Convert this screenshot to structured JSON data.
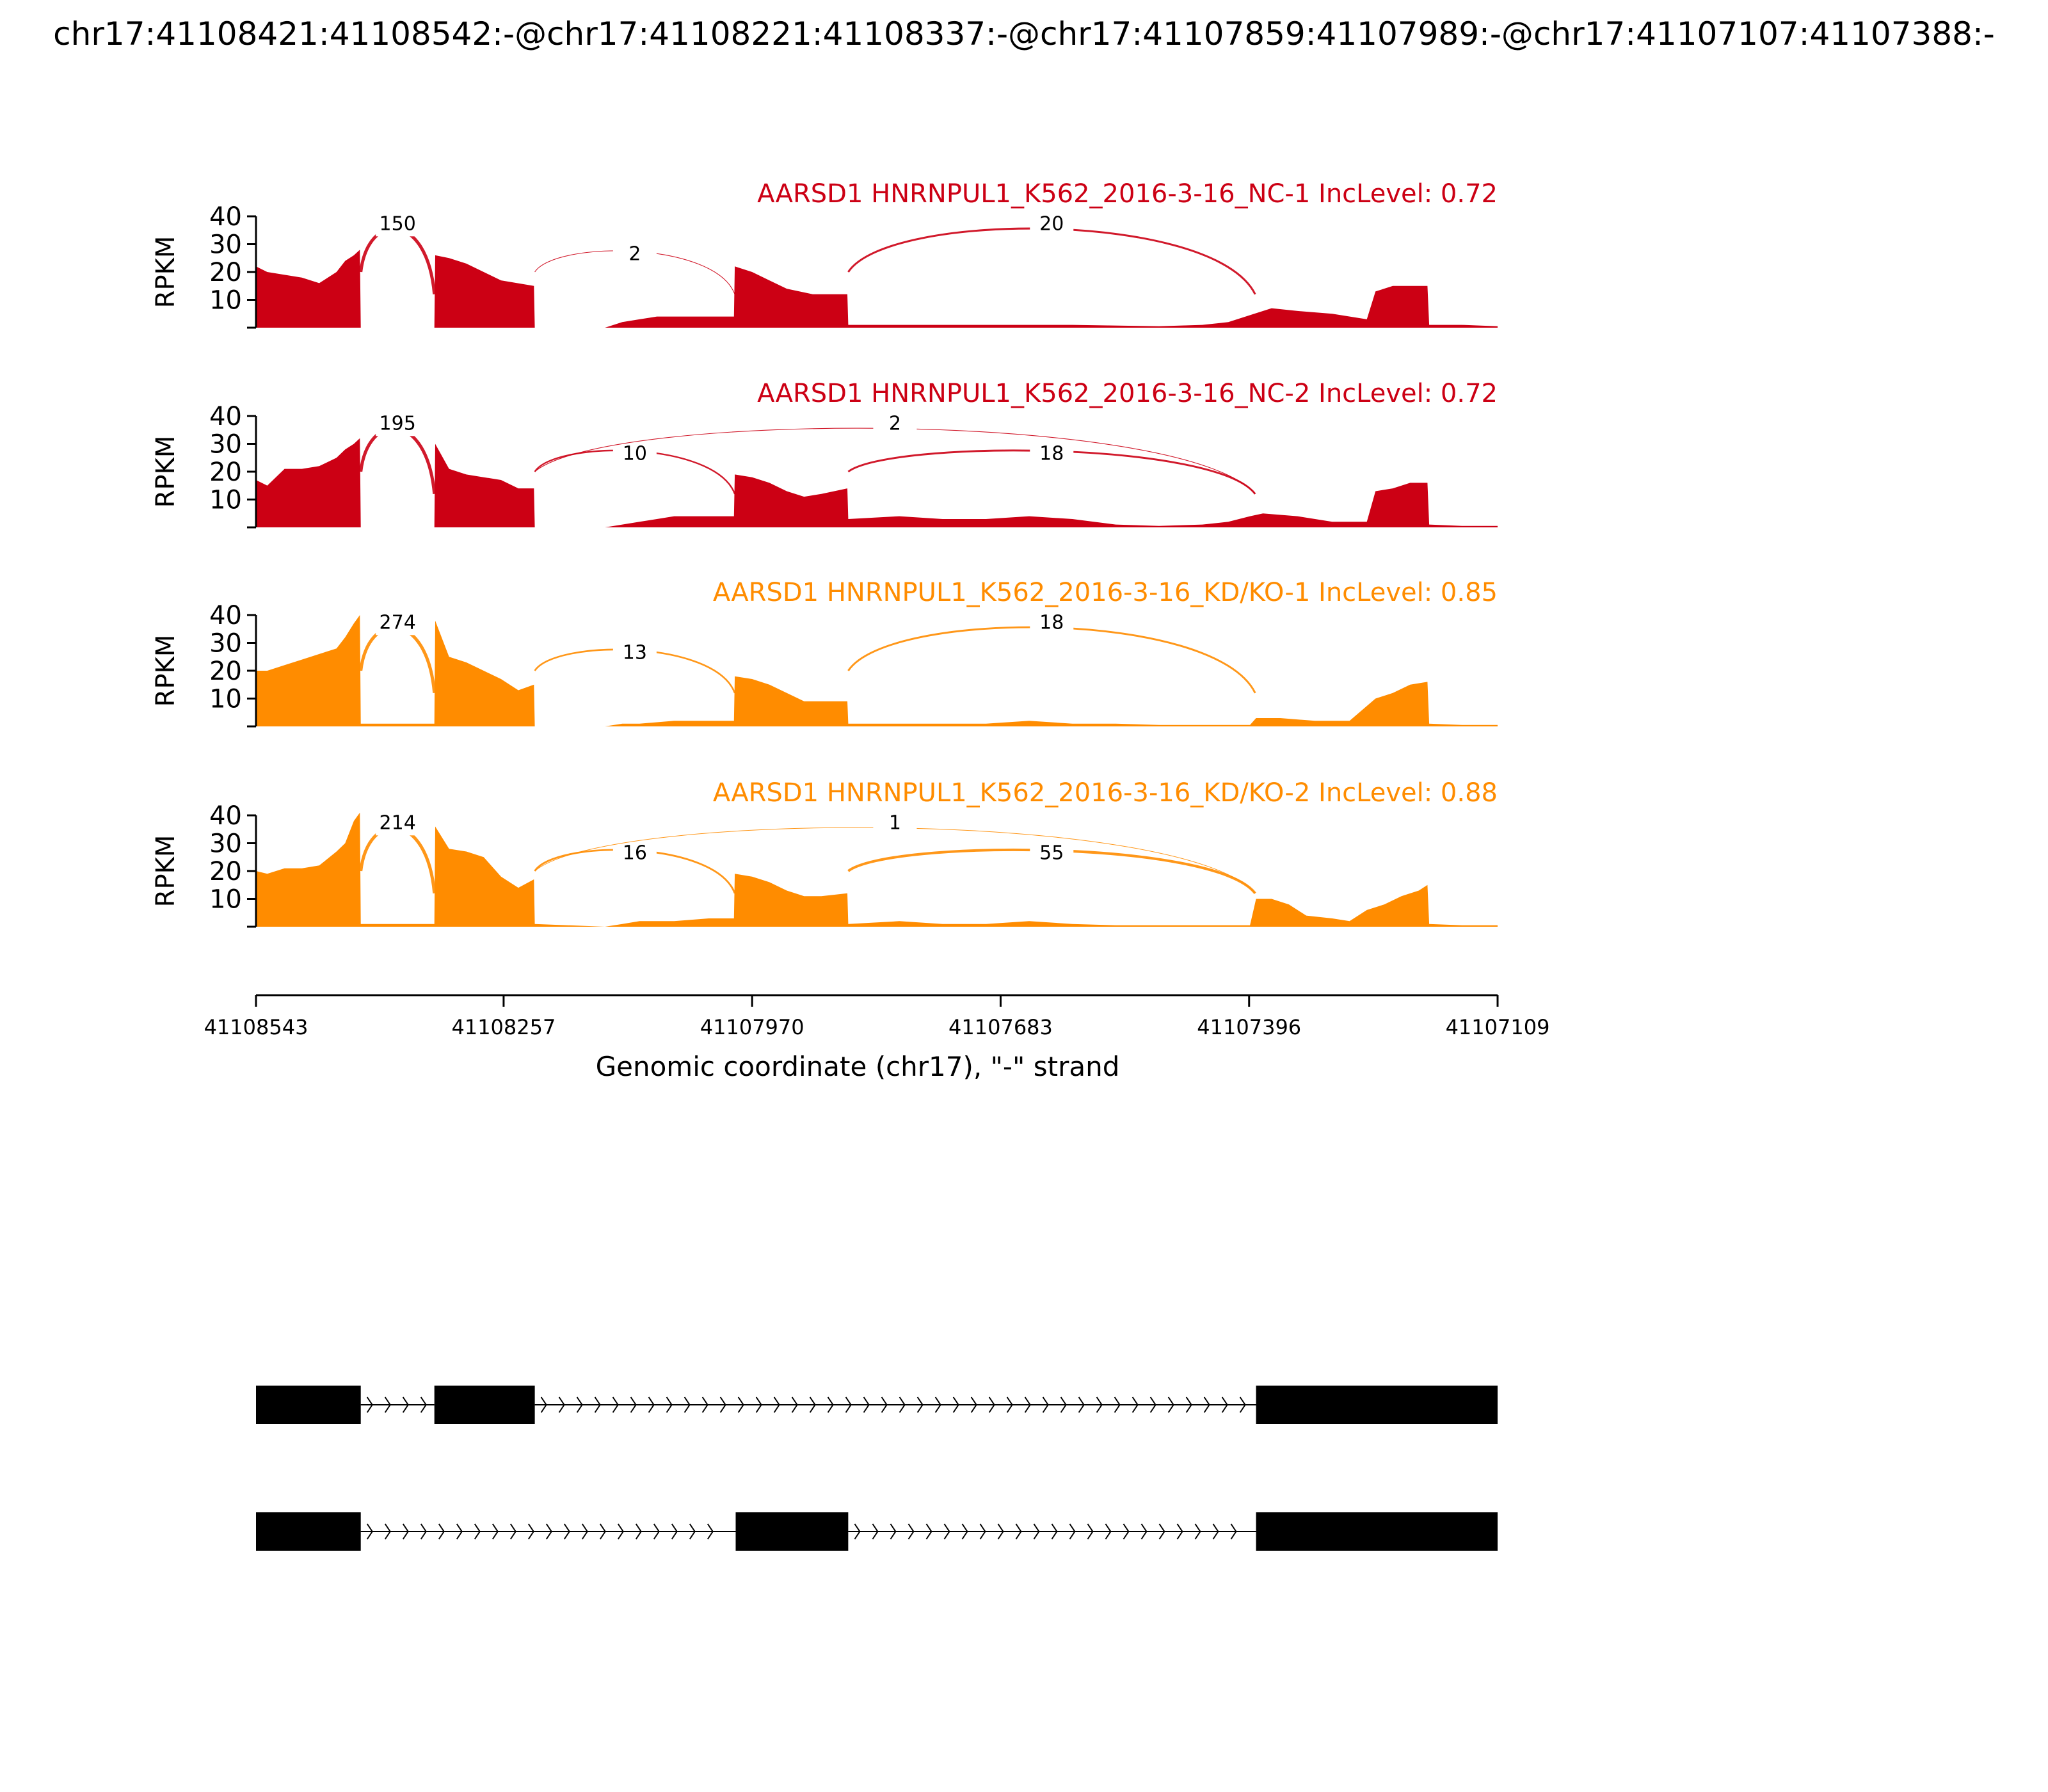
{
  "figure": {
    "title": "chr17:41108421:41108542:-@chr17:41108221:41108337:-@chr17:41107859:41107989:-@chr17:41107107:41107388:-"
  },
  "chart_data": {
    "type": "area",
    "gene": "AARSD1",
    "ylabel": "RPKM",
    "xlabel": "Genomic coordinate (chr17), \"-\" strand",
    "x_range": [
      41108543,
      41107109
    ],
    "x_ticks": [
      "41108543",
      "41108257",
      "41107970",
      "41107683",
      "41107396",
      "41107109"
    ],
    "y_range": [
      0,
      40
    ],
    "y_ticks": [
      "10",
      "20",
      "30",
      "40"
    ],
    "colors": {
      "NC": "#cc0014",
      "KD": "#ff8c00"
    },
    "tracks": [
      {
        "label": "AARSD1 HNRNPUL1_K562_2016-3-16_NC-1 IncLevel: 0.72",
        "color": "#cc0014",
        "coverage": [
          [
            41108543,
            22
          ],
          [
            41108530,
            20
          ],
          [
            41108510,
            19
          ],
          [
            41108490,
            18
          ],
          [
            41108470,
            16
          ],
          [
            41108450,
            20
          ],
          [
            41108440,
            24
          ],
          [
            41108430,
            26
          ],
          [
            41108423,
            28
          ],
          [
            41108422,
            0
          ],
          [
            41108337,
            0
          ],
          [
            41108336,
            26
          ],
          [
            41108320,
            25
          ],
          [
            41108300,
            23
          ],
          [
            41108280,
            20
          ],
          [
            41108260,
            17
          ],
          [
            41108222,
            15
          ],
          [
            41108221,
            0
          ],
          [
            41108140,
            0
          ],
          [
            41108120,
            2
          ],
          [
            41108100,
            3
          ],
          [
            41108080,
            4
          ],
          [
            41108060,
            4
          ],
          [
            41108040,
            4
          ],
          [
            41108020,
            4
          ],
          [
            41107991,
            4
          ],
          [
            41107990,
            22
          ],
          [
            41107970,
            20
          ],
          [
            41107950,
            17
          ],
          [
            41107930,
            14
          ],
          [
            41107900,
            12
          ],
          [
            41107860,
            12
          ],
          [
            41107859,
            1
          ],
          [
            41107700,
            1
          ],
          [
            41107600,
            1
          ],
          [
            41107500,
            0.5
          ],
          [
            41107450,
            1
          ],
          [
            41107420,
            2
          ],
          [
            41107390,
            5
          ],
          [
            41107370,
            7
          ],
          [
            41107340,
            6
          ],
          [
            41107300,
            5
          ],
          [
            41107260,
            3
          ],
          [
            41107250,
            13
          ],
          [
            41107230,
            15
          ],
          [
            41107210,
            15
          ],
          [
            41107190,
            15
          ],
          [
            41107188,
            1
          ],
          [
            41107150,
            1
          ],
          [
            41107109,
            0.5
          ]
        ],
        "junctions": [
          {
            "from": 41108422,
            "to": 41108337,
            "count": "150"
          },
          {
            "from": 41108221,
            "to": 41107990,
            "count": "2"
          },
          {
            "from": 41107859,
            "to": 41107389,
            "count": "20"
          }
        ]
      },
      {
        "label": "AARSD1 HNRNPUL1_K562_2016-3-16_NC-2 IncLevel: 0.72",
        "color": "#cc0014",
        "coverage": [
          [
            41108543,
            17
          ],
          [
            41108530,
            15
          ],
          [
            41108510,
            21
          ],
          [
            41108490,
            21
          ],
          [
            41108470,
            22
          ],
          [
            41108450,
            25
          ],
          [
            41108440,
            28
          ],
          [
            41108430,
            30
          ],
          [
            41108423,
            32
          ],
          [
            41108422,
            0
          ],
          [
            41108337,
            0
          ],
          [
            41108336,
            30
          ],
          [
            41108320,
            21
          ],
          [
            41108300,
            19
          ],
          [
            41108280,
            18
          ],
          [
            41108260,
            17
          ],
          [
            41108240,
            14
          ],
          [
            41108222,
            14
          ],
          [
            41108221,
            0
          ],
          [
            41108140,
            0
          ],
          [
            41108120,
            1
          ],
          [
            41108100,
            2
          ],
          [
            41108080,
            3
          ],
          [
            41108060,
            4
          ],
          [
            41108040,
            4
          ],
          [
            41108020,
            4
          ],
          [
            41107991,
            4
          ],
          [
            41107990,
            19
          ],
          [
            41107970,
            18
          ],
          [
            41107950,
            16
          ],
          [
            41107930,
            13
          ],
          [
            41107910,
            11
          ],
          [
            41107890,
            12
          ],
          [
            41107860,
            14
          ],
          [
            41107859,
            3
          ],
          [
            41107800,
            4
          ],
          [
            41107750,
            3
          ],
          [
            41107700,
            3
          ],
          [
            41107650,
            4
          ],
          [
            41107600,
            3
          ],
          [
            41107550,
            1
          ],
          [
            41107500,
            0.5
          ],
          [
            41107450,
            1
          ],
          [
            41107420,
            2
          ],
          [
            41107395,
            4
          ],
          [
            41107380,
            5
          ],
          [
            41107340,
            4
          ],
          [
            41107300,
            2
          ],
          [
            41107260,
            2
          ],
          [
            41107250,
            13
          ],
          [
            41107230,
            14
          ],
          [
            41107210,
            16
          ],
          [
            41107190,
            16
          ],
          [
            41107188,
            1
          ],
          [
            41107150,
            0.5
          ],
          [
            41107109,
            0.5
          ]
        ],
        "junctions": [
          {
            "from": 41108422,
            "to": 41108337,
            "count": "195"
          },
          {
            "from": 41108221,
            "to": 41107990,
            "count": "10"
          },
          {
            "from": 41108221,
            "to": 41107389,
            "count": "2"
          },
          {
            "from": 41107859,
            "to": 41107389,
            "count": "18"
          }
        ]
      },
      {
        "label": "AARSD1 HNRNPUL1_K562_2016-3-16_KD/KO-1 IncLevel: 0.85",
        "color": "#ff8c00",
        "coverage": [
          [
            41108543,
            20
          ],
          [
            41108530,
            20
          ],
          [
            41108510,
            22
          ],
          [
            41108490,
            24
          ],
          [
            41108470,
            26
          ],
          [
            41108450,
            28
          ],
          [
            41108440,
            32
          ],
          [
            41108430,
            37
          ],
          [
            41108423,
            40
          ],
          [
            41108422,
            1
          ],
          [
            41108337,
            1
          ],
          [
            41108336,
            38
          ],
          [
            41108320,
            25
          ],
          [
            41108300,
            23
          ],
          [
            41108280,
            20
          ],
          [
            41108260,
            17
          ],
          [
            41108240,
            13
          ],
          [
            41108222,
            15
          ],
          [
            41108221,
            0
          ],
          [
            41108140,
            0
          ],
          [
            41108120,
            1
          ],
          [
            41108100,
            1
          ],
          [
            41108060,
            2
          ],
          [
            41108020,
            2
          ],
          [
            41107991,
            2
          ],
          [
            41107990,
            18
          ],
          [
            41107970,
            17
          ],
          [
            41107950,
            15
          ],
          [
            41107930,
            12
          ],
          [
            41107910,
            9
          ],
          [
            41107890,
            9
          ],
          [
            41107860,
            9
          ],
          [
            41107859,
            1
          ],
          [
            41107800,
            1
          ],
          [
            41107750,
            1
          ],
          [
            41107700,
            1
          ],
          [
            41107650,
            2
          ],
          [
            41107600,
            1
          ],
          [
            41107550,
            1
          ],
          [
            41107500,
            0.5
          ],
          [
            41107450,
            0.5
          ],
          [
            41107395,
            0.5
          ],
          [
            41107388,
            3
          ],
          [
            41107360,
            3
          ],
          [
            41107320,
            2
          ],
          [
            41107280,
            2
          ],
          [
            41107250,
            10
          ],
          [
            41107230,
            12
          ],
          [
            41107210,
            15
          ],
          [
            41107190,
            16
          ],
          [
            41107188,
            1
          ],
          [
            41107150,
            0.5
          ],
          [
            41107109,
            0.5
          ]
        ],
        "junctions": [
          {
            "from": 41108422,
            "to": 41108337,
            "count": "274"
          },
          {
            "from": 41108221,
            "to": 41107990,
            "count": "13"
          },
          {
            "from": 41107859,
            "to": 41107389,
            "count": "18"
          }
        ]
      },
      {
        "label": "AARSD1 HNRNPUL1_K562_2016-3-16_KD/KO-2 IncLevel: 0.88",
        "color": "#ff8c00",
        "coverage": [
          [
            41108543,
            20
          ],
          [
            41108530,
            19
          ],
          [
            41108510,
            21
          ],
          [
            41108490,
            21
          ],
          [
            41108470,
            22
          ],
          [
            41108450,
            27
          ],
          [
            41108440,
            30
          ],
          [
            41108430,
            38
          ],
          [
            41108423,
            41
          ],
          [
            41108422,
            1
          ],
          [
            41108337,
            1
          ],
          [
            41108336,
            36
          ],
          [
            41108320,
            28
          ],
          [
            41108300,
            27
          ],
          [
            41108280,
            25
          ],
          [
            41108260,
            18
          ],
          [
            41108240,
            14
          ],
          [
            41108222,
            17
          ],
          [
            41108221,
            1
          ],
          [
            41108140,
            0
          ],
          [
            41108120,
            1
          ],
          [
            41108100,
            2
          ],
          [
            41108060,
            2
          ],
          [
            41108020,
            3
          ],
          [
            41107991,
            3
          ],
          [
            41107990,
            19
          ],
          [
            41107970,
            18
          ],
          [
            41107950,
            16
          ],
          [
            41107930,
            13
          ],
          [
            41107910,
            11
          ],
          [
            41107890,
            11
          ],
          [
            41107860,
            12
          ],
          [
            41107859,
            1
          ],
          [
            41107800,
            2
          ],
          [
            41107750,
            1
          ],
          [
            41107700,
            1
          ],
          [
            41107650,
            2
          ],
          [
            41107600,
            1
          ],
          [
            41107550,
            0.5
          ],
          [
            41107500,
            0.5
          ],
          [
            41107450,
            0.5
          ],
          [
            41107395,
            0.5
          ],
          [
            41107388,
            10
          ],
          [
            41107370,
            10
          ],
          [
            41107350,
            8
          ],
          [
            41107330,
            4
          ],
          [
            41107300,
            3
          ],
          [
            41107280,
            2
          ],
          [
            41107260,
            6
          ],
          [
            41107240,
            8
          ],
          [
            41107220,
            11
          ],
          [
            41107200,
            13
          ],
          [
            41107190,
            15
          ],
          [
            41107188,
            1
          ],
          [
            41107150,
            0.5
          ],
          [
            41107109,
            0.5
          ]
        ],
        "junctions": [
          {
            "from": 41108422,
            "to": 41108337,
            "count": "214"
          },
          {
            "from": 41108221,
            "to": 41107990,
            "count": "16"
          },
          {
            "from": 41108221,
            "to": 41107389,
            "count": "1"
          },
          {
            "from": 41107859,
            "to": 41107389,
            "count": "55"
          }
        ]
      }
    ],
    "isoforms": [
      {
        "exons": [
          [
            41108543,
            41108422
          ],
          [
            41108337,
            41108221
          ],
          [
            41107388,
            41107109
          ]
        ]
      },
      {
        "exons": [
          [
            41108543,
            41108422
          ],
          [
            41107989,
            41107859
          ],
          [
            41107388,
            41107109
          ]
        ]
      }
    ]
  }
}
